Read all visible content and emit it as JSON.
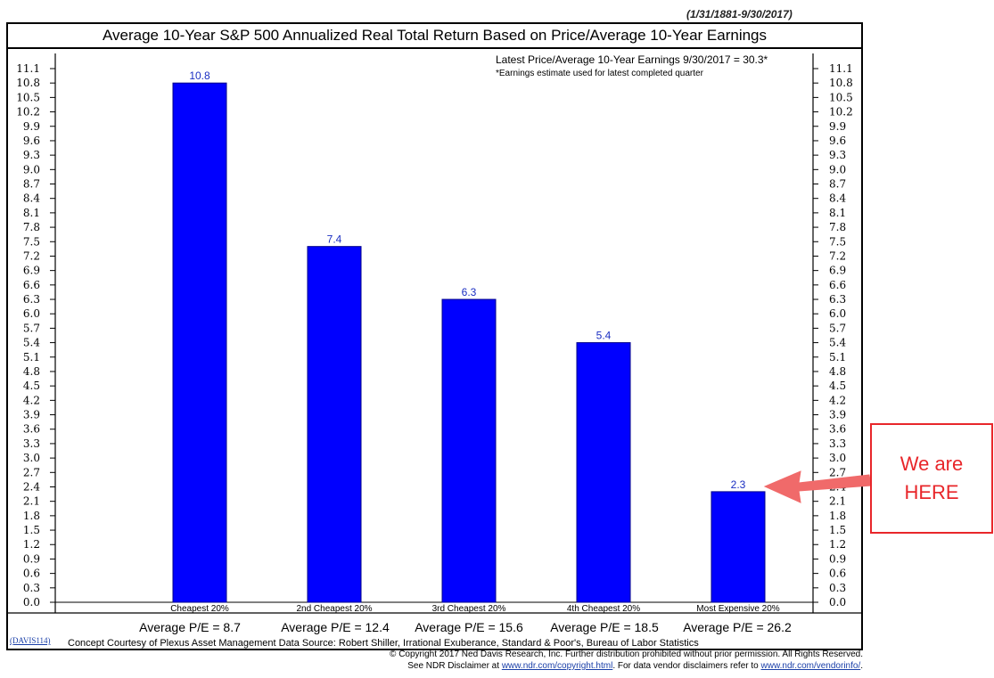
{
  "header": {
    "date_range": "(1/31/1881-9/30/2017)",
    "title": "Average 10-Year S&P 500 Annualized Real Total Return Based on Price/Average 10-Year Earnings",
    "latest_pe": "Latest Price/Average 10-Year Earnings 9/30/2017 = 30.3*",
    "earnings_note": "*Earnings estimate used for latest completed quarter"
  },
  "chart_data": {
    "type": "bar",
    "categories": [
      "Cheapest 20%",
      "2nd Cheapest 20%",
      "3rd Cheapest 20%",
      "4th Cheapest 20%",
      "Most Expensive 20%"
    ],
    "values": [
      10.8,
      7.4,
      6.3,
      5.4,
      2.3
    ],
    "value_labels": [
      "10.8",
      "7.4",
      "6.3",
      "5.4",
      "2.3"
    ],
    "ylim": [
      0,
      11.1
    ],
    "yticks": [
      "0.0",
      "0.3",
      "0.6",
      "0.9",
      "1.2",
      "1.5",
      "1.8",
      "2.1",
      "2.4",
      "2.7",
      "3.0",
      "3.3",
      "3.6",
      "3.9",
      "4.2",
      "4.5",
      "4.8",
      "5.1",
      "5.4",
      "5.7",
      "6.0",
      "6.3",
      "6.6",
      "6.9",
      "7.2",
      "7.5",
      "7.8",
      "8.1",
      "8.4",
      "8.7",
      "9.0",
      "9.3",
      "9.6",
      "9.9",
      "10.2",
      "10.5",
      "10.8",
      "11.1"
    ],
    "bar_color": "#0000ff",
    "label_color": "#1a2ec2",
    "grid": false,
    "average_pe": [
      "Average P/E = 8.7",
      "Average P/E = 12.4",
      "Average P/E = 15.6",
      "Average P/E = 18.5",
      "Average P/E = 26.2"
    ]
  },
  "footer": {
    "davis_code": "(DAVIS114)",
    "concept": "Concept Courtesy of Plexus Asset Management Data Source: Robert Shiller, Irrational Exuberance, Standard & Poor's, Bureau of Labor Statistics",
    "copyright": "© Copyright 2017 Ned Davis Research, Inc. Further distribution prohibited without prior permission.  All Rights Reserved.",
    "disclaimer_prefix": "See NDR Disclaimer at ",
    "disclaimer_link1": "www.ndr.com/copyright.html",
    "disclaimer_middle": ". For data vendor disclaimers refer to ",
    "disclaimer_link2": "www.ndr.com/vendorinfo/",
    "disclaimer_suffix": "."
  },
  "callout": {
    "line1": "We are",
    "line2": "HERE",
    "color": "#e8262a",
    "arrow_color": "#f06a6a"
  }
}
